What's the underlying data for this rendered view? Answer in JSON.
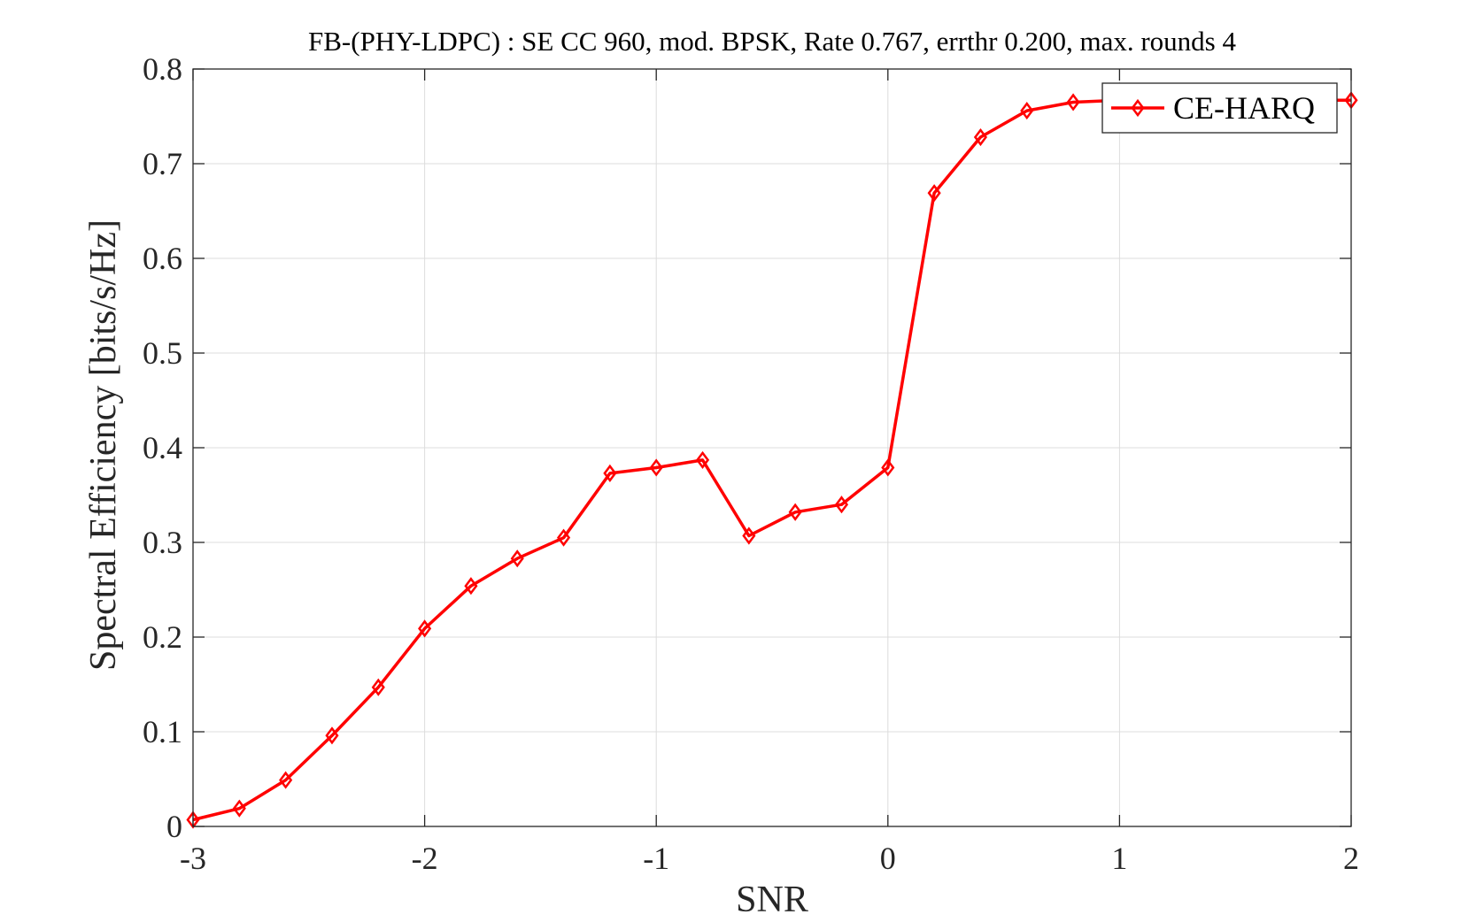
{
  "chart_data": {
    "type": "line",
    "title": "FB-(PHY-LDPC) : SE CC 960, mod. BPSK, Rate 0.767, errthr 0.200, max. rounds 4",
    "xlabel": "SNR",
    "ylabel": "Spectral Efficiency [bits/s/Hz]",
    "xlim": [
      -3,
      2
    ],
    "ylim": [
      0,
      0.8
    ],
    "xticks": [
      -3,
      -2,
      -1,
      0,
      1,
      2
    ],
    "xtick_labels": [
      "-3",
      "-2",
      "-1",
      "0",
      "1",
      "2"
    ],
    "yticks": [
      0,
      0.1,
      0.2,
      0.3,
      0.4,
      0.5,
      0.6,
      0.7,
      0.8
    ],
    "ytick_labels": [
      "0",
      "0.1",
      "0.2",
      "0.3",
      "0.4",
      "0.5",
      "0.6",
      "0.7",
      "0.8"
    ],
    "grid": true,
    "legend_position": "top-right",
    "series": [
      {
        "name": "CE-HARQ",
        "color": "#ff0000",
        "marker": "diamond",
        "x": [
          -3,
          -2.8,
          -2.6,
          -2.4,
          -2.2,
          -2,
          -1.8,
          -1.6,
          -1.4,
          -1.2,
          -1,
          -0.8,
          -0.6,
          -0.4,
          -0.2,
          0,
          0.2,
          0.4,
          0.6,
          0.8,
          1,
          1.2,
          1.4,
          1.6,
          1.8,
          2
        ],
        "y": [
          0.007,
          0.019,
          0.049,
          0.096,
          0.147,
          0.209,
          0.254,
          0.283,
          0.305,
          0.373,
          0.379,
          0.387,
          0.307,
          0.332,
          0.34,
          0.379,
          0.669,
          0.728,
          0.756,
          0.765,
          0.767,
          0.767,
          0.767,
          0.767,
          0.767,
          0.767
        ]
      }
    ]
  }
}
